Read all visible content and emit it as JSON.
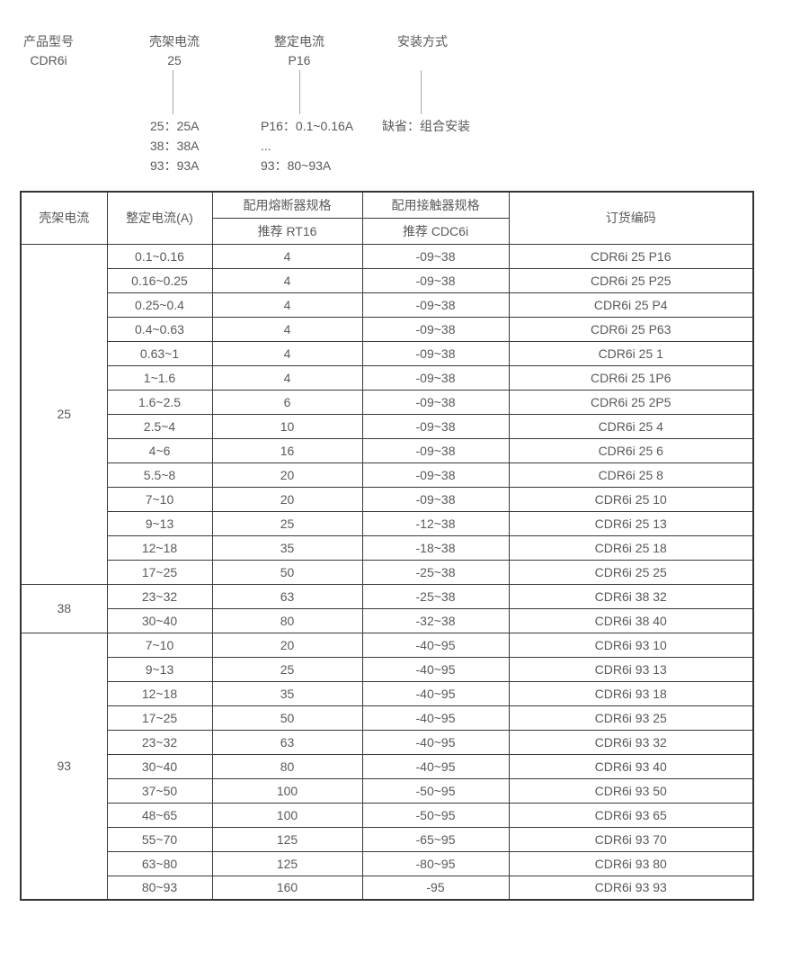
{
  "diagram": {
    "columns": [
      {
        "label": "产品型号",
        "value": "CDR6i",
        "items": []
      },
      {
        "label": "壳架电流",
        "value": "25",
        "items": [
          "25：25A",
          "38：38A",
          "93：93A"
        ]
      },
      {
        "label": "整定电流",
        "value": "P16",
        "items": [
          "P16：0.1~0.16A",
          "...",
          "93：80~93A"
        ]
      },
      {
        "label": "安装方式",
        "value": "",
        "items": [
          "缺省：组合安装"
        ]
      }
    ]
  },
  "table": {
    "headers": {
      "frame_current": "壳架电流",
      "setting_current": "整定电流(A)",
      "fuse_spec": "配用熔断器规格",
      "fuse_recommend": "推荐 RT16",
      "contactor_spec": "配用接触器规格",
      "contactor_recommend": "推荐 CDC6i",
      "order_code": "订货编码"
    },
    "groups": [
      {
        "frame_current": "25",
        "rows": [
          [
            "0.1~0.16",
            "4",
            "-09~38",
            "CDR6i 25 P16"
          ],
          [
            "0.16~0.25",
            "4",
            "-09~38",
            "CDR6i 25 P25"
          ],
          [
            "0.25~0.4",
            "4",
            "-09~38",
            "CDR6i 25 P4"
          ],
          [
            "0.4~0.63",
            "4",
            "-09~38",
            "CDR6i 25 P63"
          ],
          [
            "0.63~1",
            "4",
            "-09~38",
            "CDR6i 25 1"
          ],
          [
            "1~1.6",
            "4",
            "-09~38",
            "CDR6i 25 1P6"
          ],
          [
            "1.6~2.5",
            "6",
            "-09~38",
            "CDR6i 25 2P5"
          ],
          [
            "2.5~4",
            "10",
            "-09~38",
            "CDR6i 25 4"
          ],
          [
            "4~6",
            "16",
            "-09~38",
            "CDR6i 25 6"
          ],
          [
            "5.5~8",
            "20",
            "-09~38",
            "CDR6i 25 8"
          ],
          [
            "7~10",
            "20",
            "-09~38",
            "CDR6i 25 10"
          ],
          [
            "9~13",
            "25",
            "-12~38",
            "CDR6i 25 13"
          ],
          [
            "12~18",
            "35",
            "-18~38",
            "CDR6i 25 18"
          ],
          [
            "17~25",
            "50",
            "-25~38",
            "CDR6i 25 25"
          ]
        ]
      },
      {
        "frame_current": "38",
        "rows": [
          [
            "23~32",
            "63",
            "-25~38",
            "CDR6i 38 32"
          ],
          [
            "30~40",
            "80",
            "-32~38",
            "CDR6i 38 40"
          ]
        ]
      },
      {
        "frame_current": "93",
        "rows": [
          [
            "7~10",
            "20",
            "-40~95",
            "CDR6i 93 10"
          ],
          [
            "9~13",
            "25",
            "-40~95",
            "CDR6i 93 13"
          ],
          [
            "12~18",
            "35",
            "-40~95",
            "CDR6i 93 18"
          ],
          [
            "17~25",
            "50",
            "-40~95",
            "CDR6i 93 25"
          ],
          [
            "23~32",
            "63",
            "-40~95",
            "CDR6i 93 32"
          ],
          [
            "30~40",
            "80",
            "-40~95",
            "CDR6i 93 40"
          ],
          [
            "37~50",
            "100",
            "-50~95",
            "CDR6i 93 50"
          ],
          [
            "48~65",
            "100",
            "-50~95",
            "CDR6i 93 65"
          ],
          [
            "55~70",
            "125",
            "-65~95",
            "CDR6i 93 70"
          ],
          [
            "63~80",
            "125",
            "-80~95",
            "CDR6i 93 80"
          ],
          [
            "80~93",
            "160",
            "-95",
            "CDR6i 93 93"
          ]
        ]
      }
    ]
  },
  "colors": {
    "text": "#595959",
    "border": "#333333",
    "connector_line": "#a6a6a6",
    "background": "#ffffff"
  }
}
